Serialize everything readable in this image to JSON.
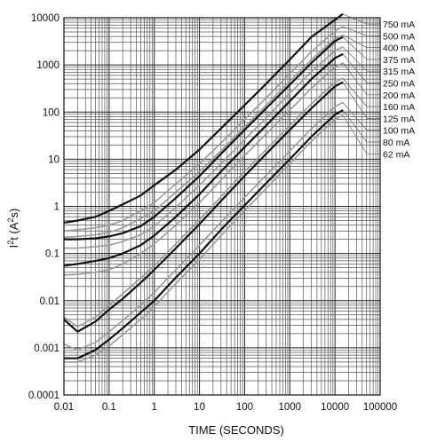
{
  "chart_data": {
    "type": "line",
    "xlabel": "TIME (SECONDS)",
    "ylabel_base": "I",
    "ylabel_sup1": "2",
    "ylabel_mid": "t (A",
    "ylabel_sup2": "2",
    "ylabel_end": "s)",
    "x_scale": "log",
    "y_scale": "log",
    "xlim": [
      0.01,
      100000
    ],
    "ylim": [
      0.0001,
      10000
    ],
    "grid": true,
    "x_ticks": [
      "0.01",
      "0.1",
      "1",
      "10",
      "100",
      "1000",
      "10000",
      "100000"
    ],
    "y_ticks": [
      "10000",
      "1000",
      "100",
      "10",
      "1",
      "0.1",
      "0.01",
      "0.001",
      "0.0001"
    ],
    "legend_position": "right",
    "series": [
      {
        "name": "750 mA",
        "color": "#111111",
        "x": [
          0.01,
          0.02,
          0.05,
          0.1,
          0.2,
          0.5,
          1,
          3,
          10,
          30,
          100,
          300,
          1000,
          3000,
          10000,
          15000
        ],
        "y": [
          0.45,
          0.5,
          0.6,
          0.8,
          1.1,
          1.7,
          2.8,
          6,
          16,
          45,
          140,
          400,
          1300,
          3900,
          9000,
          12000
        ]
      },
      {
        "name": "500 mA",
        "color": "#999999",
        "x": [
          0.01,
          0.02,
          0.05,
          0.1,
          0.2,
          0.5,
          1,
          3,
          10,
          30,
          100,
          300,
          1000,
          3000,
          10000,
          15000
        ],
        "y": [
          0.3,
          0.32,
          0.35,
          0.4,
          0.5,
          0.8,
          1.2,
          3,
          8,
          22,
          70,
          200,
          650,
          1900,
          5200,
          6500
        ]
      },
      {
        "name": "400 mA",
        "color": "#999999",
        "x": [
          0.01,
          0.02,
          0.05,
          0.1,
          0.2,
          0.5,
          1,
          3,
          10,
          30,
          100,
          300,
          1000,
          3000,
          10000,
          15000
        ],
        "y": [
          0.22,
          0.23,
          0.25,
          0.28,
          0.35,
          0.55,
          0.8,
          2,
          5.5,
          15,
          48,
          140,
          450,
          1300,
          3600,
          4300
        ]
      },
      {
        "name": "375 mA",
        "color": "#111111",
        "x": [
          0.01,
          0.02,
          0.05,
          0.1,
          0.2,
          0.5,
          1,
          3,
          10,
          30,
          100,
          300,
          1000,
          3000,
          10000,
          15000
        ],
        "y": [
          0.2,
          0.2,
          0.21,
          0.23,
          0.27,
          0.38,
          0.6,
          1.5,
          4.4,
          13,
          42,
          120,
          380,
          1100,
          3200,
          3900
        ]
      },
      {
        "name": "315 mA",
        "color": "#999999",
        "x": [
          0.01,
          0.02,
          0.05,
          0.1,
          0.2,
          0.5,
          1,
          3,
          10,
          30,
          100,
          300,
          1000,
          3000,
          10000,
          15000
        ],
        "y": [
          0.13,
          0.13,
          0.14,
          0.15,
          0.18,
          0.25,
          0.38,
          0.95,
          2.8,
          8,
          26,
          75,
          250,
          720,
          2000,
          2400
        ]
      },
      {
        "name": "250 mA",
        "color": "#111111",
        "x": [
          0.01,
          0.02,
          0.05,
          0.1,
          0.2,
          0.5,
          1,
          3,
          10,
          30,
          100,
          300,
          1000,
          3000,
          10000,
          15000
        ],
        "y": [
          0.055,
          0.06,
          0.07,
          0.08,
          0.1,
          0.15,
          0.24,
          0.6,
          1.8,
          5.5,
          18,
          52,
          170,
          500,
          1400,
          1700
        ]
      },
      {
        "name": "200 mA",
        "color": "#999999",
        "x": [
          0.01,
          0.02,
          0.05,
          0.1,
          0.2,
          0.5,
          1,
          3,
          10,
          30,
          100,
          300,
          1000,
          3000,
          10000,
          15000
        ],
        "y": [
          0.035,
          0.036,
          0.04,
          0.045,
          0.06,
          0.1,
          0.16,
          0.4,
          1.2,
          3.6,
          12,
          34,
          110,
          320,
          900,
          1100
        ]
      },
      {
        "name": "160 mA",
        "color": "#999999",
        "x": [
          0.01,
          0.02,
          0.05,
          0.1,
          0.2,
          0.5,
          1,
          3,
          10,
          30,
          100,
          300,
          1000,
          3000,
          10000,
          15000
        ],
        "y": [
          0.0045,
          0.0028,
          0.0045,
          0.008,
          0.014,
          0.03,
          0.055,
          0.16,
          0.52,
          1.6,
          5.5,
          16,
          52,
          150,
          430,
          520
        ]
      },
      {
        "name": "125 mA",
        "color": "#111111",
        "x": [
          0.01,
          0.02,
          0.05,
          0.1,
          0.2,
          0.5,
          1,
          3,
          10,
          30,
          100,
          300,
          1000,
          3000,
          10000,
          15000
        ],
        "y": [
          0.004,
          0.0022,
          0.0036,
          0.0065,
          0.011,
          0.024,
          0.045,
          0.13,
          0.42,
          1.3,
          4.4,
          13,
          42,
          120,
          350,
          430
        ]
      },
      {
        "name": "100 mA",
        "color": "#999999",
        "x": [
          0.01,
          0.02,
          0.05,
          0.1,
          0.2,
          0.5,
          1,
          3,
          10,
          30,
          100,
          300,
          1000,
          3000,
          10000,
          15000
        ],
        "y": [
          0.0012,
          0.0009,
          0.0013,
          0.0022,
          0.0038,
          0.008,
          0.015,
          0.045,
          0.15,
          0.46,
          1.55,
          4.6,
          15,
          44,
          130,
          160
        ]
      },
      {
        "name": "80 mA",
        "color": "#111111",
        "x": [
          0.01,
          0.02,
          0.05,
          0.1,
          0.2,
          0.5,
          1,
          3,
          10,
          30,
          100,
          300,
          1000,
          3000,
          10000,
          15000
        ],
        "y": [
          0.0006,
          0.0006,
          0.0009,
          0.0015,
          0.0026,
          0.0056,
          0.01,
          0.031,
          0.1,
          0.32,
          1.05,
          3.1,
          10,
          30,
          88,
          110
        ]
      },
      {
        "name": "62 mA",
        "color": "#999999",
        "x": [
          0.01,
          0.02,
          0.05,
          0.1,
          0.2,
          0.5,
          1,
          3,
          10,
          30,
          100,
          300,
          1000,
          3000,
          10000,
          15000
        ],
        "y": [
          0.0005,
          0.0005,
          0.0007,
          0.0011,
          0.0019,
          0.004,
          0.0075,
          0.023,
          0.075,
          0.24,
          0.8,
          2.4,
          8,
          24,
          70,
          85
        ]
      }
    ]
  }
}
